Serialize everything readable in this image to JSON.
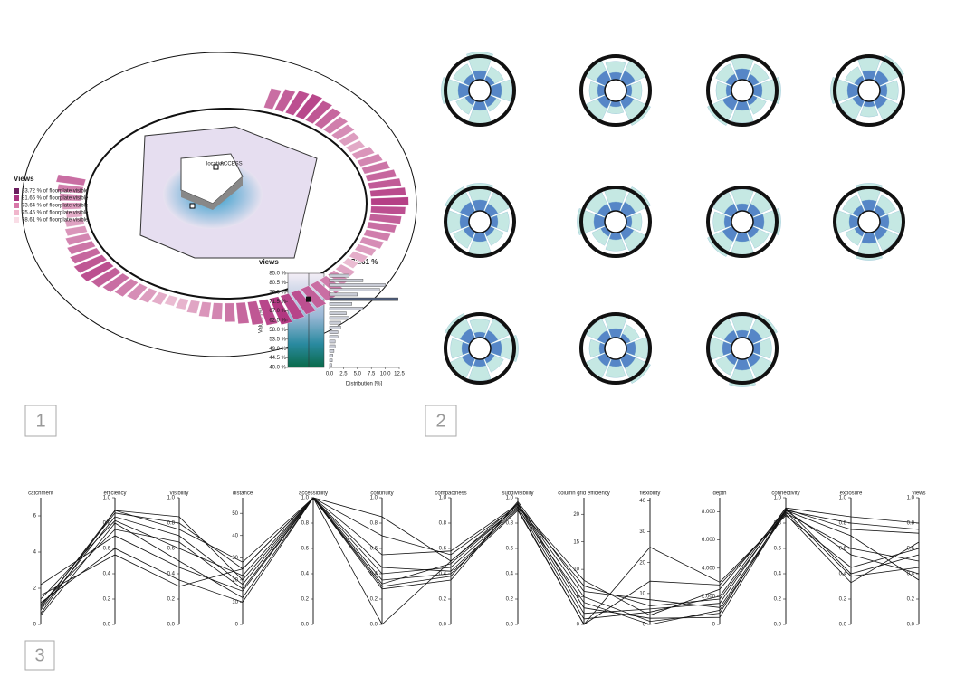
{
  "panel_labels": [
    "1",
    "2",
    "3"
  ],
  "chart_data": [
    {
      "type": "ring",
      "location_label": "location",
      "access_label": "ACCESS",
      "legend_title": "Views",
      "legend": [
        {
          "label": "83.72 % of floorplate visible",
          "color": "#6b1d5e"
        },
        {
          "label": "81.66 % of floorplate visible",
          "color": "#a8327f"
        },
        {
          "label": "73.64 % of floorplate visible",
          "color": "#d877a9"
        },
        {
          "label": "75.45 % of floorplate visible",
          "color": "#f0b6cc"
        },
        {
          "label": "78.61 % of floorplate visible",
          "color": "#f9dde6"
        }
      ],
      "values": [
        70,
        74,
        78,
        80,
        76,
        72,
        66,
        62,
        58,
        55,
        60,
        64,
        68,
        72,
        75,
        79,
        82,
        78,
        74,
        70,
        66,
        62,
        58,
        54,
        50,
        56,
        60,
        66,
        70,
        74,
        78,
        81,
        84,
        80,
        76,
        72,
        68,
        64,
        60,
        56,
        52,
        50,
        54,
        58,
        62,
        66,
        70,
        74,
        78,
        76,
        72,
        68,
        64,
        60,
        57,
        54,
        58,
        62,
        66,
        70
      ],
      "colors": [
        "#fbe3ea",
        "#b0347f"
      ],
      "ylim": [
        40,
        85
      ]
    },
    {
      "type": "histogram",
      "title": "views",
      "marker": 72.61,
      "marker_label": "72.61 %",
      "ylabel": "Values [%]",
      "xlabel": "Distribution [%]",
      "bins": [
        40,
        42.25,
        44.5,
        46.75,
        49,
        51.25,
        53.5,
        55.75,
        58,
        60.25,
        62.5,
        64.75,
        67,
        69.25,
        71.5,
        73.75,
        76,
        78.25,
        80.5,
        82.75,
        85
      ],
      "counts": [
        0.4,
        0.5,
        0.6,
        0.8,
        1,
        1,
        1.5,
        1.5,
        2,
        2,
        3.5,
        3,
        6,
        4,
        12.3,
        5,
        9,
        10,
        6,
        3.5
      ],
      "ylim": [
        40,
        85
      ],
      "yticks": [
        {
          "value": 40,
          "label": "40.0 %"
        },
        {
          "value": 44.5,
          "label": "44.5 %"
        },
        {
          "value": 49,
          "label": "49.0 %"
        },
        {
          "value": 53.5,
          "label": "53.5 %"
        },
        {
          "value": 58,
          "label": "58.0 %"
        },
        {
          "value": 62.5,
          "label": "62.5 %"
        },
        {
          "value": 67,
          "label": "67.0 %"
        },
        {
          "value": 71.5,
          "label": "71.5 %"
        },
        {
          "value": 76,
          "label": "76.0 %"
        },
        {
          "value": 80.5,
          "label": "80.5 %"
        },
        {
          "value": 85,
          "label": "85.0 %"
        }
      ],
      "xlim": [
        0,
        12.5
      ],
      "xticks": [
        {
          "value": 0,
          "label": "0.0"
        },
        2.5,
        {
          "value": 5,
          "label": "5.0"
        },
        7.5,
        {
          "value": 10,
          "label": "10.0"
        },
        12.5
      ],
      "color": "#c9ccd6",
      "highlight": "#4b5a78"
    },
    {
      "type": "roses",
      "colors": [
        "#bfe6e0",
        "#4a7cc4"
      ],
      "roses": [
        {
          "outer": [
            0.9,
            0.5,
            0.7,
            0.4,
            0.8,
            0.5,
            0.9,
            0.6
          ],
          "inner": [
            0.5,
            0.3,
            0.6,
            0.4,
            0.5,
            0.3,
            0.6,
            0.4
          ]
        },
        {
          "outer": [
            0.6,
            0.8,
            0.5,
            0.9,
            0.4,
            0.7,
            0.5,
            0.8
          ],
          "inner": [
            0.4,
            0.6,
            0.3,
            0.5,
            0.3,
            0.5,
            0.4,
            0.6
          ]
        },
        {
          "outer": [
            0.8,
            0.6,
            0.9,
            0.5,
            0.7,
            0.9,
            0.5,
            0.6
          ],
          "inner": [
            0.6,
            0.4,
            0.5,
            0.3,
            0.5,
            0.6,
            0.3,
            0.4
          ]
        },
        {
          "outer": [
            0.7,
            0.9,
            0.6,
            0.8,
            0.5,
            0.7,
            0.9,
            0.5
          ],
          "inner": [
            0.5,
            0.6,
            0.4,
            0.5,
            0.3,
            0.4,
            0.6,
            0.3
          ]
        },
        {
          "outer": [
            0.9,
            0.7,
            0.6,
            0.5,
            0.8,
            0.6,
            0.7,
            0.9
          ],
          "inner": [
            0.6,
            0.5,
            0.4,
            0.3,
            0.5,
            0.4,
            0.5,
            0.6
          ]
        },
        {
          "outer": [
            0.8,
            0.9,
            0.5,
            0.7,
            0.6,
            0.5,
            0.9,
            0.7
          ],
          "inner": [
            0.5,
            0.6,
            0.3,
            0.5,
            0.4,
            0.3,
            0.6,
            0.5
          ]
        },
        {
          "outer": [
            0.7,
            0.8,
            0.9,
            0.6,
            0.8,
            0.9,
            0.6,
            0.7
          ],
          "inner": [
            0.4,
            0.5,
            0.6,
            0.4,
            0.5,
            0.6,
            0.4,
            0.5
          ]
        },
        {
          "outer": [
            0.9,
            0.6,
            0.8,
            0.7,
            0.9,
            0.5,
            0.8,
            0.6
          ],
          "inner": [
            0.6,
            0.4,
            0.5,
            0.5,
            0.6,
            0.3,
            0.5,
            0.4
          ]
        },
        {
          "outer": [
            0.6,
            0.7,
            0.9,
            0.5,
            0.7,
            0.8,
            0.6,
            0.9
          ],
          "inner": [
            0.3,
            0.5,
            0.6,
            0.3,
            0.4,
            0.5,
            0.4,
            0.6
          ]
        },
        {
          "outer": [
            0.8,
            0.5,
            0.7,
            0.9,
            0.6,
            0.8,
            0.5,
            0.7
          ],
          "inner": [
            0.5,
            0.3,
            0.5,
            0.6,
            0.4,
            0.5,
            0.3,
            0.5
          ]
        },
        {
          "outer": [
            0.7,
            0.9,
            0.6,
            0.8,
            0.9,
            0.6,
            0.7,
            0.8
          ],
          "inner": [
            0.4,
            0.6,
            0.4,
            0.5,
            0.6,
            0.4,
            0.5,
            0.5
          ]
        }
      ]
    },
    {
      "type": "parallel",
      "color": "#111111",
      "axes": [
        {
          "name": "catchment",
          "lim": [
            0,
            7
          ],
          "ticks": [
            0,
            2,
            4,
            6
          ]
        },
        {
          "name": "efficiency",
          "lim": [
            0,
            1
          ],
          "ticks": [
            {
              "value": 0,
              "label": "0.0"
            },
            0.2,
            0.4,
            0.6,
            0.8,
            {
              "value": 1,
              "label": "1.0"
            }
          ]
        },
        {
          "name": "visibility",
          "lim": [
            0,
            1
          ],
          "ticks": [
            {
              "value": 0,
              "label": "0.0"
            },
            0.2,
            0.4,
            0.6,
            0.8,
            {
              "value": 1,
              "label": "1.0"
            }
          ]
        },
        {
          "name": "distance",
          "lim": [
            0,
            57
          ],
          "ticks": [
            0,
            10,
            20,
            30,
            40,
            50
          ]
        },
        {
          "name": "accessibility",
          "lim": [
            0,
            1
          ],
          "ticks": [
            {
              "value": 0,
              "label": "0.0"
            },
            0.2,
            0.4,
            0.6,
            0.8,
            {
              "value": 1,
              "label": "1.0"
            }
          ]
        },
        {
          "name": "continuity",
          "lim": [
            0,
            1
          ],
          "ticks": [
            {
              "value": 0,
              "label": "0.0"
            },
            0.2,
            0.4,
            0.6,
            0.8,
            {
              "value": 1,
              "label": "1.0"
            }
          ]
        },
        {
          "name": "compactness",
          "lim": [
            0,
            1
          ],
          "ticks": [
            {
              "value": 0,
              "label": "0.0"
            },
            0.2,
            0.4,
            0.6,
            0.8,
            {
              "value": 1,
              "label": "1.0"
            }
          ]
        },
        {
          "name": "subdivisibility",
          "lim": [
            0,
            1
          ],
          "ticks": [
            {
              "value": 0,
              "label": "0.0"
            },
            0.2,
            0.4,
            0.6,
            0.8,
            {
              "value": 1,
              "label": "1.0"
            }
          ]
        },
        {
          "name": "column grid efficiency",
          "lim": [
            0,
            23
          ],
          "ticks": [
            0,
            5,
            10,
            15,
            20
          ]
        },
        {
          "name": "flexibility",
          "lim": [
            0,
            41
          ],
          "ticks": [
            0,
            10,
            20,
            30,
            40
          ]
        },
        {
          "name": "depth",
          "lim": [
            0,
            9000
          ],
          "ticks": [
            0,
            {
              "value": 2000,
              "label": "2.000"
            },
            {
              "value": 4000,
              "label": "4.000"
            },
            {
              "value": 6000,
              "label": "6.000"
            },
            {
              "value": 8000,
              "label": "8.000"
            }
          ]
        },
        {
          "name": "connectivity",
          "lim": [
            0,
            1
          ],
          "ticks": [
            {
              "value": 0,
              "label": "0.0"
            },
            0.2,
            0.4,
            0.6,
            0.8,
            {
              "value": 1,
              "label": "1.0"
            }
          ]
        },
        {
          "name": "exposure",
          "lim": [
            0,
            1
          ],
          "ticks": [
            {
              "value": 0,
              "label": "0.0"
            },
            0.2,
            0.4,
            0.6,
            0.8,
            {
              "value": 1,
              "label": "1.0"
            }
          ]
        },
        {
          "name": "views",
          "lim": [
            0,
            1
          ],
          "ticks": [
            {
              "value": 0,
              "label": "0.0"
            },
            0.2,
            0.4,
            0.6,
            0.8,
            {
              "value": 1,
              "label": "1.0"
            }
          ]
        }
      ],
      "series": [
        {
          "values": [
            0.6,
            0.9,
            0.85,
            20,
            1,
            0.85,
            0.5,
            0.95,
            2,
            5,
            1500,
            0.92,
            0.85,
            0.8
          ]
        },
        {
          "values": [
            1.0,
            0.88,
            0.8,
            25,
            1,
            0.7,
            0.55,
            0.94,
            8,
            3,
            2500,
            0.9,
            0.8,
            0.75
          ]
        },
        {
          "values": [
            1.4,
            0.82,
            0.6,
            22,
            1,
            0.4,
            0.45,
            0.92,
            4,
            0,
            1000,
            0.88,
            0.6,
            0.5
          ]
        },
        {
          "values": [
            2.2,
            0.7,
            0.45,
            15,
            1,
            0.35,
            0.4,
            0.9,
            0,
            25,
            3000,
            0.86,
            0.45,
            0.6
          ]
        },
        {
          "values": [
            0.8,
            0.85,
            0.7,
            18,
            1,
            0.3,
            0.38,
            0.96,
            3,
            2,
            500,
            0.9,
            0.7,
            0.35
          ]
        },
        {
          "values": [
            1.2,
            0.6,
            0.35,
            10,
            1,
            0,
            0.5,
            0.93,
            1,
            4,
            2000,
            0.92,
            0.4,
            0.55
          ]
        },
        {
          "values": [
            0.5,
            0.8,
            0.5,
            12,
            1,
            0.28,
            0.35,
            0.97,
            6,
            8,
            1200,
            0.89,
            0.38,
            0.45
          ]
        },
        {
          "values": [
            1.6,
            0.55,
            0.3,
            25,
            1,
            0.45,
            0.42,
            0.91,
            0,
            14,
            2800,
            0.87,
            0.33,
            0.65
          ]
        },
        {
          "values": [
            0.9,
            0.9,
            0.75,
            28,
            1,
            0.55,
            0.58,
            0.95,
            5,
            1,
            800,
            0.91,
            0.75,
            0.72
          ]
        },
        {
          "values": [
            1.1,
            0.75,
            0.65,
            16,
            1,
            0.32,
            0.48,
            0.93,
            7,
            6,
            1800,
            0.9,
            0.55,
            0.4
          ]
        }
      ]
    }
  ]
}
